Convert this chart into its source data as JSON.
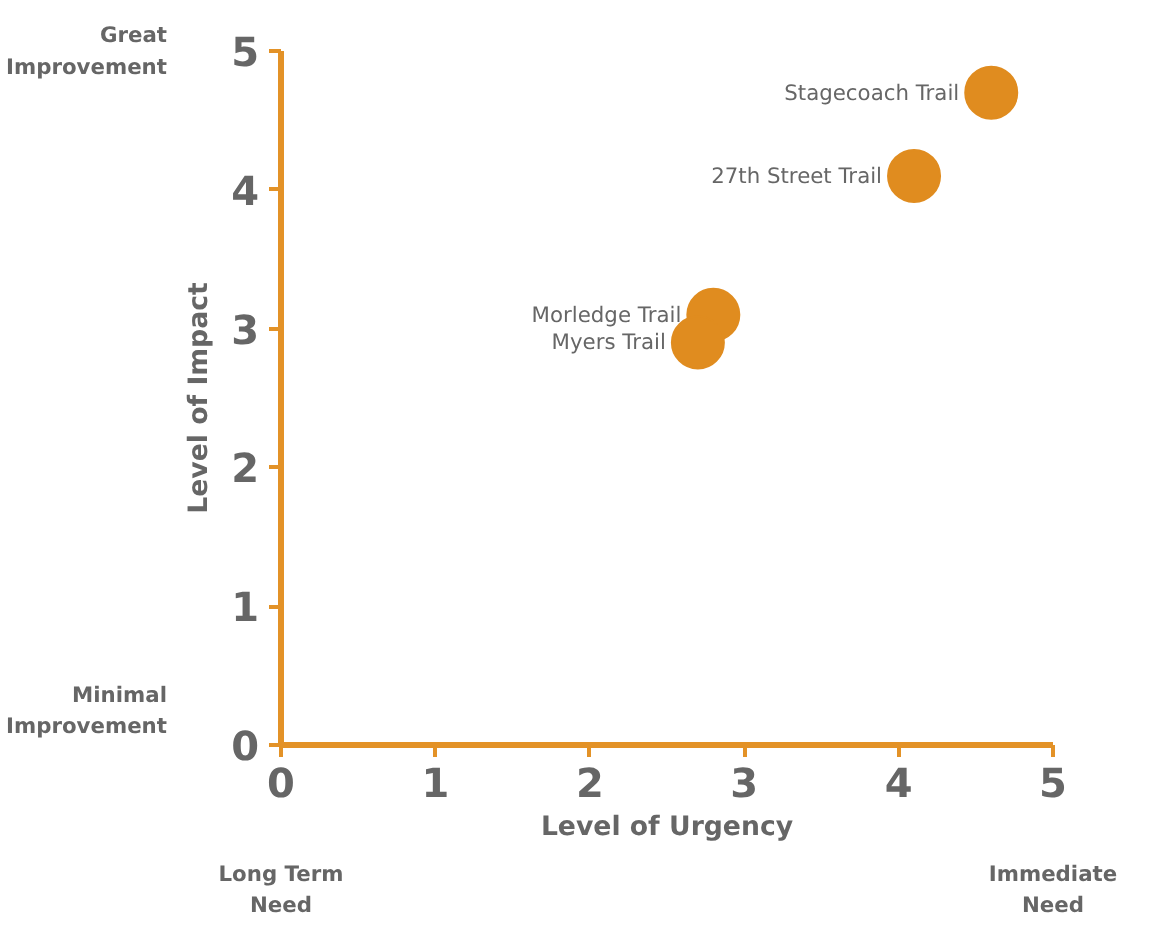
{
  "chart_data": {
    "type": "scatter",
    "xlabel": "Level of Urgency",
    "ylabel": "Level of Impact",
    "x": [
      4.6,
      4.1,
      2.8,
      2.7
    ],
    "series": [
      {
        "color": "#e08c1f",
        "values": [
          4.7,
          4.1,
          3.1,
          2.9
        ]
      }
    ],
    "xlim": [
      0,
      5
    ],
    "ylim": [
      0,
      5
    ],
    "xticks": [
      0,
      1,
      2,
      3,
      4,
      5
    ],
    "yticks": [
      0,
      1,
      2,
      3,
      4,
      5
    ],
    "grid": false,
    "marker": "circle",
    "annotations": [
      "Great Improvement",
      "Minimal Improvement",
      "Long Term Need",
      "Immediate Need",
      {
        "text": "Stagecoach Trail",
        "x": 4.6,
        "y": 4.7
      },
      {
        "text": "27th Street Trail",
        "x": 4.1,
        "y": 4.1
      },
      {
        "text": "Morledge Trail",
        "x": 2.8,
        "y": 3.1
      },
      {
        "text": "Myers Trail",
        "x": 2.7,
        "y": 2.9
      }
    ]
  }
}
